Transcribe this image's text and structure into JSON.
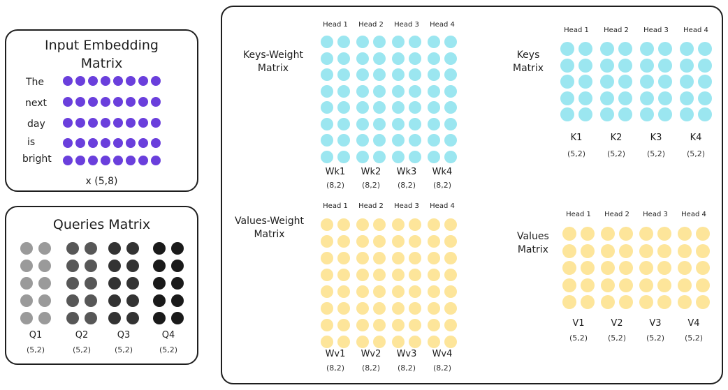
{
  "input_panel": {
    "title_line1": "Input Embedding",
    "title_line2": "Matrix",
    "words": [
      "The",
      "next",
      "day",
      "is",
      "bright"
    ],
    "shape": "x (5,8)",
    "dot_color": "#6a3fdc"
  },
  "queries_panel": {
    "title": "Queries Matrix",
    "labels": [
      "Q1",
      "Q2",
      "Q3",
      "Q4"
    ],
    "shapes": [
      "(5,2)",
      "(5,2)",
      "(5,2)",
      "(5,2)"
    ],
    "colors": [
      "#9a9a9a",
      "#575757",
      "#333333",
      "#1a1a1a"
    ]
  },
  "keys_weight": {
    "title_line1": "Keys-Weight",
    "title_line2": "Matrix",
    "heads": [
      "Head 1",
      "Head 2",
      "Head 3",
      "Head 4"
    ],
    "labels": [
      "Wk1",
      "Wk2",
      "Wk3",
      "Wk4"
    ],
    "shapes": [
      "(8,2)",
      "(8,2)",
      "(8,2)",
      "(8,2)"
    ],
    "dot_color": "#9be6f0"
  },
  "keys": {
    "title_line1": "Keys",
    "title_line2": "Matrix",
    "heads": [
      "Head 1",
      "Head 2",
      "Head 3",
      "Head 4"
    ],
    "labels": [
      "K1",
      "K2",
      "K3",
      "K4"
    ],
    "shapes": [
      "(5,2)",
      "(5,2)",
      "(5,2)",
      "(5,2)"
    ],
    "dot_color": "#9be6f0"
  },
  "values_weight": {
    "title_line1": "Values-Weight",
    "title_line2": "Matrix",
    "heads": [
      "Head 1",
      "Head 2",
      "Head 3",
      "Head 4"
    ],
    "labels": [
      "Wv1",
      "Wv2",
      "Wv3",
      "Wv4"
    ],
    "shapes": [
      "(8,2)",
      "(8,2)",
      "(8,2)",
      "(8,2)"
    ],
    "dot_color": "#fde59a"
  },
  "values": {
    "title_line1": "Values",
    "title_line2": "Matrix",
    "heads": [
      "Head 1",
      "Head 2",
      "Head 3",
      "Head 4"
    ],
    "labels": [
      "V1",
      "V2",
      "V3",
      "V4"
    ],
    "shapes": [
      "(5,2)",
      "(5,2)",
      "(5,2)",
      "(5,2)"
    ],
    "dot_color": "#fde59a"
  }
}
